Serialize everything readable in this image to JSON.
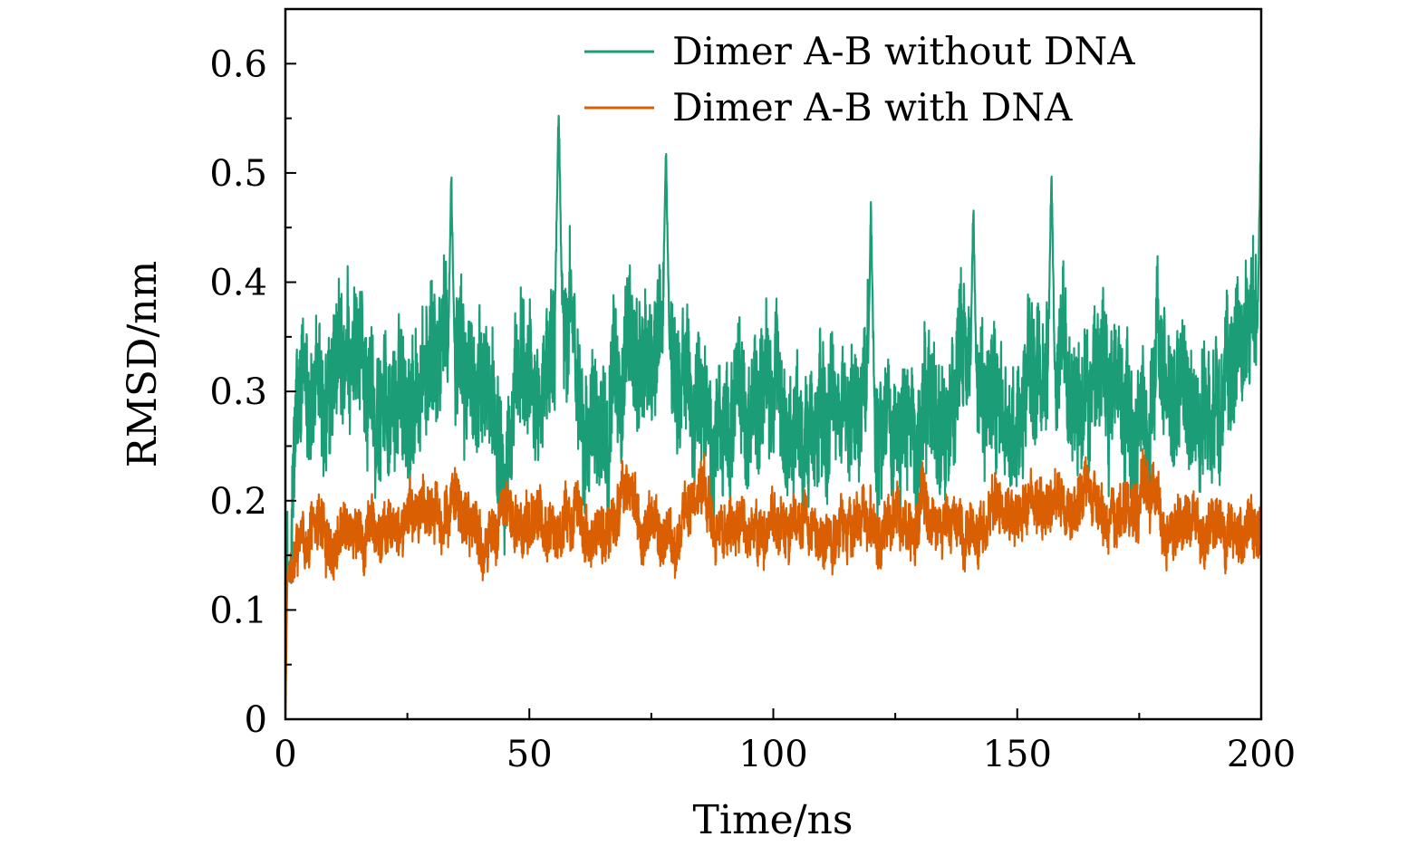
{
  "chart_data": {
    "type": "line",
    "xlabel": "Time/ns",
    "ylabel": "RMSD/nm",
    "xlim": [
      0,
      200
    ],
    "ylim": [
      0,
      0.65
    ],
    "xticks": [
      0,
      50,
      100,
      150,
      200
    ],
    "xtick_labels": [
      "0",
      "50",
      "100",
      "150",
      "200"
    ],
    "xminor_ticks": [
      25,
      75,
      125,
      175
    ],
    "yticks": [
      0,
      0.1,
      0.2,
      0.3,
      0.4,
      0.5,
      0.6
    ],
    "ytick_labels": [
      "0",
      "0.1",
      "0.2",
      "0.3",
      "0.4",
      "0.5",
      "0.6"
    ],
    "yminor_ticks": [
      0.05,
      0.15,
      0.25,
      0.35,
      0.45,
      0.55
    ],
    "legend_position": "top-right",
    "series": [
      {
        "name": "Dimer A-B without DNA",
        "color": "#1b9e77",
        "x": [
          0,
          2,
          5,
          8,
          10,
          15,
          20,
          25,
          30,
          34,
          40,
          45,
          50,
          56,
          60,
          65,
          70,
          75,
          78,
          85,
          90,
          95,
          100,
          105,
          110,
          115,
          120,
          125,
          130,
          135,
          140,
          145,
          150,
          156,
          160,
          165,
          170,
          175,
          180,
          185,
          190,
          195,
          200
        ],
        "values": [
          0.05,
          0.26,
          0.3,
          0.27,
          0.28,
          0.3,
          0.29,
          0.31,
          0.32,
          0.35,
          0.29,
          0.3,
          0.29,
          0.36,
          0.31,
          0.3,
          0.31,
          0.33,
          0.36,
          0.27,
          0.28,
          0.29,
          0.3,
          0.26,
          0.27,
          0.28,
          0.31,
          0.28,
          0.27,
          0.28,
          0.3,
          0.29,
          0.27,
          0.34,
          0.33,
          0.32,
          0.3,
          0.28,
          0.28,
          0.29,
          0.28,
          0.32,
          0.42
        ],
        "peaks": [
          {
            "x": 34,
            "y": 0.5
          },
          {
            "x": 56,
            "y": 0.56
          },
          {
            "x": 78,
            "y": 0.52
          },
          {
            "x": 120,
            "y": 0.47
          },
          {
            "x": 141,
            "y": 0.47
          },
          {
            "x": 157,
            "y": 0.5
          },
          {
            "x": 200,
            "y": 0.55
          }
        ]
      },
      {
        "name": "Dimer A-B with DNA",
        "color": "#d95f02",
        "x": [
          0,
          1,
          3,
          5,
          10,
          15,
          20,
          25,
          30,
          35,
          40,
          45,
          50,
          55,
          60,
          65,
          70,
          75,
          80,
          85,
          90,
          95,
          100,
          105,
          110,
          115,
          120,
          125,
          130,
          135,
          140,
          145,
          150,
          155,
          160,
          165,
          170,
          175,
          178,
          180,
          185,
          190,
          195,
          200
        ],
        "values": [
          0.0,
          0.13,
          0.15,
          0.155,
          0.16,
          0.17,
          0.165,
          0.18,
          0.19,
          0.195,
          0.165,
          0.18,
          0.18,
          0.185,
          0.175,
          0.18,
          0.19,
          0.18,
          0.165,
          0.18,
          0.185,
          0.18,
          0.175,
          0.17,
          0.17,
          0.165,
          0.175,
          0.185,
          0.19,
          0.185,
          0.17,
          0.175,
          0.19,
          0.195,
          0.19,
          0.195,
          0.195,
          0.2,
          0.205,
          0.17,
          0.175,
          0.18,
          0.175,
          0.18
        ]
      }
    ]
  }
}
